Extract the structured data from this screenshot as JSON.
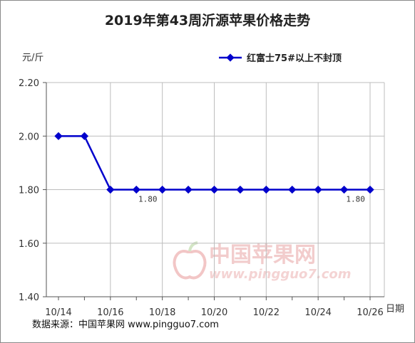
{
  "chart_data": {
    "type": "line",
    "title": "2019年第43周沂源苹果价格走势",
    "ylabel": "元/斤",
    "xlabel": "日期",
    "ylim": [
      1.4,
      2.2
    ],
    "yticks": [
      "1.40",
      "1.60",
      "1.80",
      "2.00",
      "2.20"
    ],
    "x_tick_labels": [
      "10/14",
      "10/16",
      "10/18",
      "10/20",
      "10/22",
      "10/24",
      "10/26"
    ],
    "x": [
      "10/14",
      "10/15",
      "10/16",
      "10/17",
      "10/18",
      "10/19",
      "10/20",
      "10/21",
      "10/22",
      "10/23",
      "10/24",
      "10/25",
      "10/26"
    ],
    "series": [
      {
        "name": "红富士75#以上不封顶",
        "values": [
          2.0,
          2.0,
          1.8,
          1.8,
          1.8,
          1.8,
          1.8,
          1.8,
          1.8,
          1.8,
          1.8,
          1.8,
          1.8
        ],
        "color": "#0000cc"
      }
    ],
    "data_labels": [
      {
        "x": "10/17",
        "text": "1.80"
      },
      {
        "x": "10/25",
        "text": "1.80"
      }
    ],
    "legend_position": "top-right",
    "grid": true
  },
  "footer": {
    "source": "数据来源：中国苹果网 www.pingguo7.com"
  },
  "watermark": {
    "name": "中国苹果网",
    "url": "www.pingguo7.com"
  }
}
